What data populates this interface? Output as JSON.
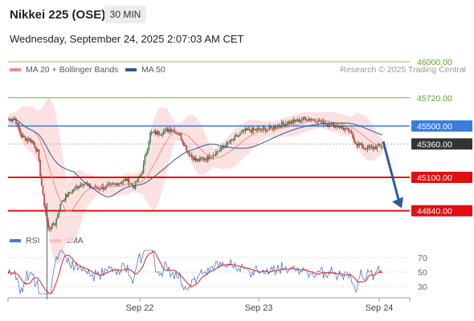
{
  "header": {
    "title": "Nikkei 225 (OSE)",
    "timeframe": "30 MIN"
  },
  "datetime": "Wednesday, September 24, 2025 2:07:03 AM CET",
  "legend": {
    "bollinger": {
      "label": "MA 20 + Bollinger Bands",
      "color": "#f08a84"
    },
    "ma50": {
      "label": "MA 50",
      "color": "#2d5a92"
    },
    "rsi": {
      "label": "RSI",
      "color": "#4a77d4"
    },
    "rsi_ma": {
      "label": "9MA",
      "color": "#e02020"
    }
  },
  "credit": "Research © 2025 Trading Central",
  "chart_data": {
    "type": "candlestick",
    "x_ticks": [
      "Sep 22",
      "Sep 23",
      "Sep 24"
    ],
    "ylim": [
      44500,
      46200
    ],
    "last_price": {
      "value": 45360,
      "label": "45360.00",
      "color": "#333333"
    },
    "levels": [
      {
        "value": 46000,
        "label": "46000.00",
        "color": "#5aa02c",
        "style": "thin-green"
      },
      {
        "value": 45720,
        "label": "45720.00",
        "color": "#5aa02c",
        "style": "thin-green"
      },
      {
        "value": 45500,
        "label": "45500.00",
        "color": "#3b7ddd",
        "style": "blue"
      },
      {
        "value": 45100,
        "label": "45100.00",
        "color": "#e01010",
        "style": "red"
      },
      {
        "value": 44840,
        "label": "44840.00",
        "color": "#e01010",
        "style": "red"
      }
    ],
    "forecast_arrow": {
      "from": 45380,
      "to": 44860,
      "color": "#2d5aa0"
    },
    "rsi": {
      "ticks": [
        70,
        50,
        30
      ],
      "ylim": [
        15,
        85
      ]
    }
  }
}
